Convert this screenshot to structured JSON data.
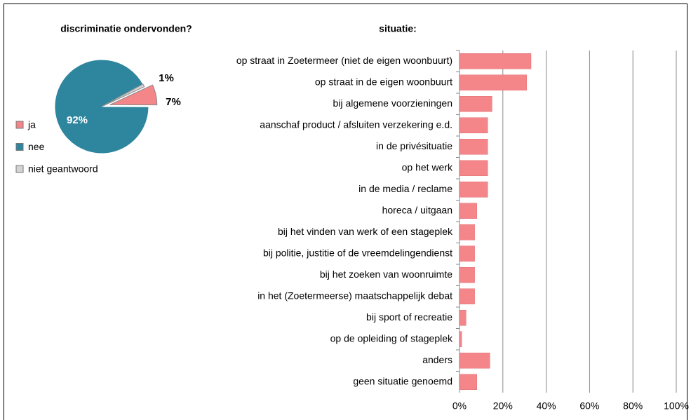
{
  "chart_data": [
    {
      "type": "pie",
      "title": "discriminatie ondervonden?",
      "categories": [
        "ja",
        "nee",
        "niet geantwoord"
      ],
      "values": [
        7,
        92,
        1
      ],
      "value_labels": [
        "7%",
        "92%",
        "1%"
      ],
      "colors": [
        "#f4868a",
        "#2e869e",
        "#d4d4d4"
      ],
      "legend": "left"
    },
    {
      "type": "bar",
      "orientation": "horizontal",
      "title": "situatie:",
      "categories": [
        "op straat in Zoetermeer (niet de eigen woonbuurt)",
        "op straat in de eigen woonbuurt",
        "bij algemene voorzieningen",
        "aanschaf product / afsluiten verzekering e.d.",
        "in de privésituatie",
        "op het werk",
        "in de media / reclame",
        "horeca / uitgaan",
        "bij het vinden van werk of een stageplek",
        "bij politie, justitie of de vreemdelingendienst",
        "bij het zoeken van woonruimte",
        "in het (Zoetermeerse) maatschappelijk debat",
        "bij sport of recreatie",
        "op de opleiding of stageplek",
        "anders",
        "geen situatie genoemd"
      ],
      "values": [
        33,
        31,
        15,
        13,
        13,
        13,
        13,
        8,
        7,
        7,
        7,
        7,
        3,
        1,
        14,
        8
      ],
      "color": "#f4868a",
      "xlim": [
        0,
        100
      ],
      "xticks": [
        {
          "value": 0,
          "label": "0%"
        },
        {
          "value": 20,
          "label": "20%"
        },
        {
          "value": 40,
          "label": "40%"
        },
        {
          "value": 60,
          "label": "60%"
        },
        {
          "value": 80,
          "label": "80%"
        },
        {
          "value": 100,
          "label": "100%"
        }
      ],
      "grid": true
    }
  ]
}
